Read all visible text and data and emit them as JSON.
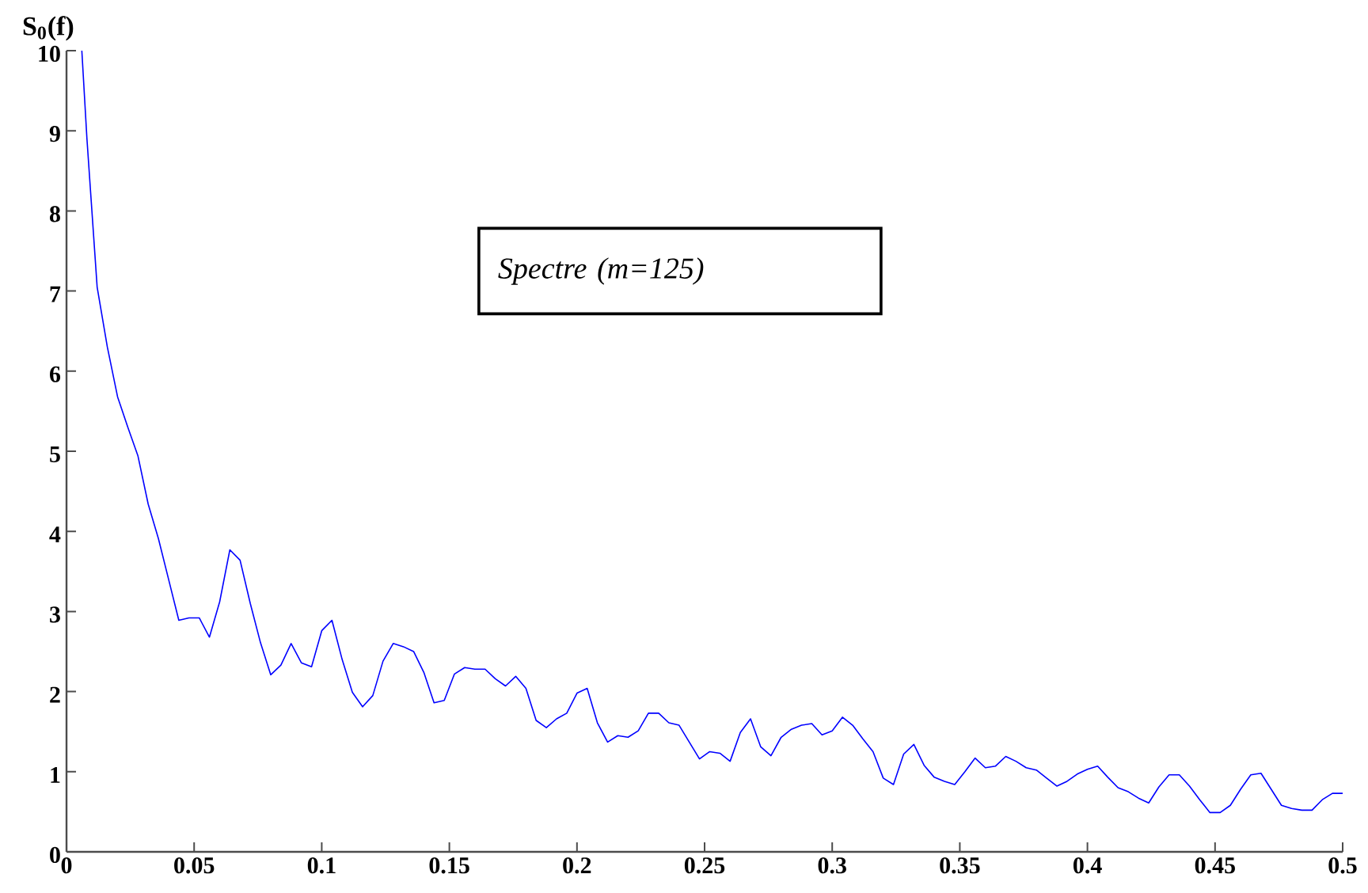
{
  "chart_data": {
    "type": "line",
    "ylabel": "S$_{0}$(f)",
    "annotations": [
      "Spectre (m=125)"
    ],
    "xlim": [
      0,
      0.5
    ],
    "ylim": [
      0,
      10
    ],
    "xticks": [
      0,
      0.05,
      0.1,
      0.15,
      0.2,
      0.25,
      0.3,
      0.35,
      0.4,
      0.45,
      0.5
    ],
    "yticks": [
      0,
      1,
      2,
      3,
      4,
      5,
      6,
      7,
      8,
      9,
      10
    ],
    "grid": false,
    "legend": false,
    "marker": "none",
    "line_style": "solid",
    "series": [
      {
        "color": "#0000ff",
        "x": [
          0.006,
          0.008,
          0.012,
          0.016,
          0.02,
          0.024,
          0.028,
          0.032,
          0.036,
          0.04,
          0.044,
          0.048,
          0.052,
          0.056,
          0.06,
          0.064,
          0.068,
          0.072,
          0.076,
          0.08,
          0.084,
          0.088,
          0.092,
          0.096,
          0.1,
          0.104,
          0.108,
          0.112,
          0.116,
          0.12,
          0.124,
          0.128,
          0.132,
          0.136,
          0.14,
          0.144,
          0.148,
          0.152,
          0.156,
          0.16,
          0.164,
          0.168,
          0.172,
          0.176,
          0.18,
          0.184,
          0.188,
          0.192,
          0.196,
          0.2,
          0.204,
          0.208,
          0.212,
          0.216,
          0.22,
          0.224,
          0.228,
          0.232,
          0.236,
          0.24,
          0.244,
          0.248,
          0.252,
          0.256,
          0.26,
          0.264,
          0.268,
          0.272,
          0.276,
          0.28,
          0.284,
          0.288,
          0.292,
          0.296,
          0.3,
          0.304,
          0.308,
          0.312,
          0.316,
          0.32,
          0.324,
          0.328,
          0.332,
          0.336,
          0.34,
          0.344,
          0.348,
          0.352,
          0.356,
          0.36,
          0.364,
          0.368,
          0.372,
          0.376,
          0.38,
          0.384,
          0.388,
          0.392,
          0.396,
          0.4,
          0.404,
          0.408,
          0.412,
          0.416,
          0.42,
          0.424,
          0.428,
          0.432,
          0.436,
          0.44,
          0.444,
          0.448,
          0.452,
          0.456,
          0.46,
          0.464,
          0.468,
          0.472,
          0.476,
          0.48,
          0.484,
          0.488,
          0.492,
          0.496,
          0.5
        ],
        "values": [
          10,
          8.9,
          7.05,
          6.3,
          5.68,
          5.3,
          4.94,
          4.34,
          3.91,
          3.4,
          2.89,
          2.92,
          2.92,
          2.68,
          3.12,
          3.77,
          3.64,
          3.1,
          2.61,
          2.21,
          2.33,
          2.6,
          2.36,
          2.31,
          2.76,
          2.89,
          2.4,
          1.99,
          1.81,
          1.95,
          2.38,
          2.6,
          2.56,
          2.5,
          2.24,
          1.86,
          1.89,
          2.22,
          2.3,
          2.28,
          2.28,
          2.16,
          2.07,
          2.19,
          2.04,
          1.64,
          1.55,
          1.66,
          1.73,
          1.98,
          2.04,
          1.61,
          1.37,
          1.45,
          1.43,
          1.51,
          1.73,
          1.73,
          1.61,
          1.58,
          1.37,
          1.16,
          1.25,
          1.23,
          1.13,
          1.49,
          1.66,
          1.31,
          1.2,
          1.43,
          1.53,
          1.58,
          1.6,
          1.46,
          1.51,
          1.68,
          1.58,
          1.41,
          1.25,
          0.92,
          0.84,
          1.22,
          1.34,
          1.08,
          0.93,
          0.88,
          0.84,
          1.0,
          1.17,
          1.05,
          1.07,
          1.19,
          1.13,
          1.05,
          1.02,
          0.92,
          0.82,
          0.88,
          0.97,
          1.03,
          1.07,
          0.93,
          0.8,
          0.75,
          0.67,
          0.61,
          0.81,
          0.96,
          0.96,
          0.82,
          0.65,
          0.49,
          0.49,
          0.58,
          0.78,
          0.96,
          0.98,
          0.78,
          0.58,
          0.54,
          0.52,
          0.52,
          0.65,
          0.73,
          0.73
        ]
      }
    ]
  }
}
